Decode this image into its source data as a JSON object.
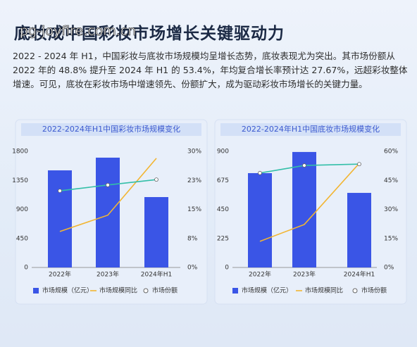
{
  "header": {
    "title": "底妆成中国彩妆市场增长关键驱动力",
    "watermark": "pg-joyfire.com.cn"
  },
  "paragraph": "2022 - 2024 年 H1，中国彩妆与底妆市场规模均呈增长态势，底妆表现尤为突出。其市场份额从 2022 年的 48.8% 提升至 2024 年 H1 的 53.4%，年均复合增长率预计达 27.67%，远超彩妆整体增速。可见，底妆在彩妆市场中增速领先、份额扩大，成为驱动彩妆市场增长的关键力量。",
  "chart_data": [
    {
      "type": "combo",
      "title": "2022-2024年H1中国彩妆市场规模变化",
      "categories": [
        "2022年",
        "2023年",
        "2024年H1"
      ],
      "ylim": [
        0,
        1800
      ],
      "yticks": [
        0,
        450,
        900,
        1350,
        1800
      ],
      "y2lim": [
        0,
        30
      ],
      "y2ticks": [
        {
          "value": 0,
          "label": "0%"
        },
        {
          "value": 7.5,
          "label": "8%"
        },
        {
          "value": 15,
          "label": "15%"
        },
        {
          "value": 22.5,
          "label": "23%"
        },
        {
          "value": 30,
          "label": "30%"
        }
      ],
      "series": [
        {
          "name": "市场规模（亿元）",
          "type": "bar",
          "color": "#3a55e6",
          "values": [
            1505,
            1702,
            1091
          ]
        },
        {
          "name": "市场规模同比",
          "type": "line",
          "axis": "y2",
          "color": "#f2b531",
          "values": [
            9.3,
            13.5,
            28.2
          ]
        },
        {
          "name": "市场份额",
          "type": "line",
          "axis": "y2",
          "color": "#33bfa8",
          "markers": true,
          "values": [
            19.8,
            21.3,
            22.7
          ]
        }
      ]
    },
    {
      "type": "combo",
      "title": "2022-2024年H1中国底妆市场规模变化",
      "categories": [
        "2022年",
        "2023年",
        "2024年H1"
      ],
      "ylim": [
        0,
        900
      ],
      "yticks": [
        0,
        225,
        450,
        675,
        900
      ],
      "y2lim": [
        0,
        60
      ],
      "y2ticks": [
        {
          "value": 0,
          "label": "0%"
        },
        {
          "value": 15,
          "label": "15%"
        },
        {
          "value": 30,
          "label": "30%"
        },
        {
          "value": 45,
          "label": "45%"
        },
        {
          "value": 60,
          "label": "60%"
        }
      ],
      "series": [
        {
          "name": "市场规模（亿元）",
          "type": "bar",
          "color": "#3a55e6",
          "values": [
            731,
            895,
            578
          ]
        },
        {
          "name": "市场规模同比",
          "type": "line",
          "axis": "y2",
          "color": "#f2b531",
          "values": [
            13.5,
            22.2,
            53.8
          ]
        },
        {
          "name": "市场份额",
          "type": "line",
          "axis": "y2",
          "color": "#33bfa8",
          "markers": true,
          "values": [
            48.8,
            52.7,
            53.4
          ]
        }
      ]
    }
  ]
}
